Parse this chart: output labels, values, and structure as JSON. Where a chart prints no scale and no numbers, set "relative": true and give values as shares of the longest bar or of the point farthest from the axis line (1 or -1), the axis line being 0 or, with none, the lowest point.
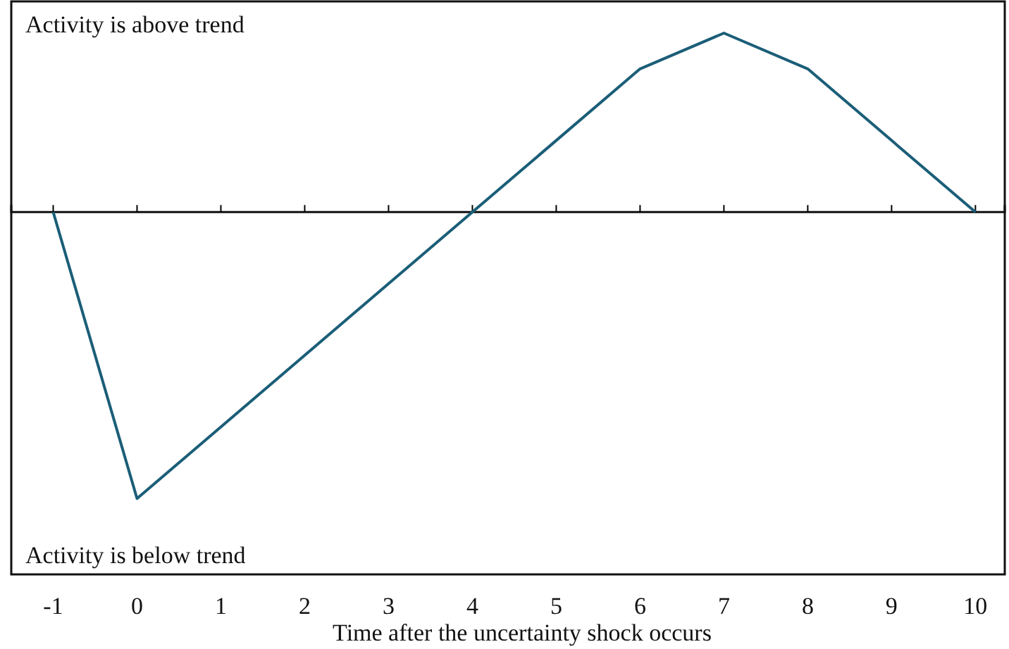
{
  "chart_data": {
    "type": "line",
    "relative": true,
    "xlabel": "Time after the uncertainty shock occurs",
    "annotations": [
      "Activity is above trend",
      "Activity is below trend"
    ],
    "x": [
      -1,
      0,
      4,
      6,
      7,
      8,
      10
    ],
    "series": [
      {
        "color": "#1b5e78",
        "values": [
          0,
          -1,
          0,
          0.5,
          0.625,
          0.5,
          0
        ]
      }
    ],
    "xlim": [
      -1.5,
      10.35
    ],
    "xticks": [
      -1,
      0,
      1,
      2,
      3,
      4,
      5,
      6,
      7,
      8,
      9,
      10
    ],
    "ref_lines": [
      {
        "axis": "y",
        "value": 0,
        "color": "#111111"
      }
    ],
    "grid": false,
    "marker": "none",
    "line_style": "solid"
  }
}
